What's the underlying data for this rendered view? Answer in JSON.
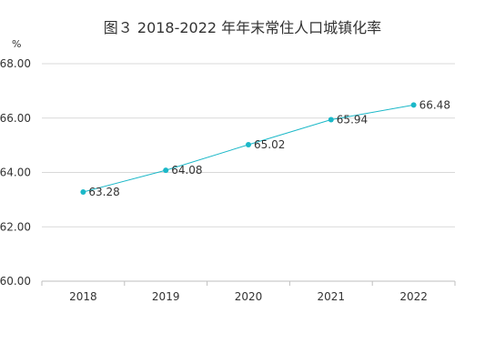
{
  "chart_data": {
    "type": "line",
    "title": "图３  2018-2022 年年末常住人口城镇化率",
    "ylabel": "%",
    "xlabel": "",
    "categories": [
      "2018",
      "2019",
      "2020",
      "2021",
      "2022"
    ],
    "series": [
      {
        "values": [
          63.28,
          64.08,
          65.02,
          65.94,
          66.48
        ],
        "color": "#1bb8c8"
      }
    ],
    "data_labels": [
      "63.28",
      "64.08",
      "65.02",
      "65.94",
      "66.48"
    ],
    "ylim": [
      60,
      68
    ],
    "yticks": [
      "60.00",
      "62.00",
      "64.00",
      "66.00",
      "68.00"
    ],
    "grid": true,
    "legend": "none",
    "colors": {
      "line": "#1bb8c8",
      "grid": "#d9d9d9",
      "axis": "#bfbfbf",
      "text": "#333333"
    }
  }
}
